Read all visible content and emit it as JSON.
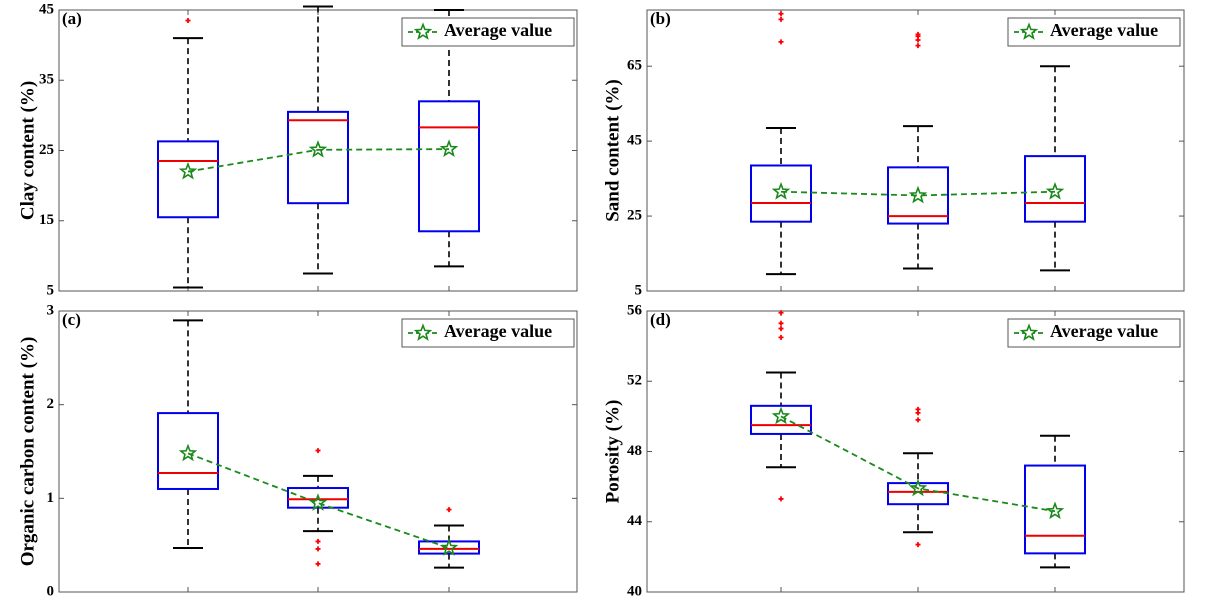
{
  "colors": {
    "box": "#0000ee",
    "median": "#ee0000",
    "whisker": "#000000",
    "outlier": "#ff0000",
    "average": "#1a8a1a",
    "axes": "#555555"
  },
  "chart_data": [
    {
      "type": "box",
      "panel_label": "(a)",
      "ylabel": "Clay content (%)",
      "ylim": [
        5,
        45
      ],
      "yticks": [
        5,
        15,
        25,
        35,
        45
      ],
      "grid": false,
      "legend": {
        "label": "Average value",
        "position": "top-right"
      },
      "groups": [
        {
          "low": 5.5,
          "q1": 15.5,
          "median": 23.5,
          "q3": 26.3,
          "high": 41,
          "mean": 22,
          "outliers": [
            43.5
          ]
        },
        {
          "low": 7.5,
          "q1": 17.5,
          "median": 29.3,
          "q3": 30.5,
          "high": 45.5,
          "mean": 25.1,
          "outliers": []
        },
        {
          "low": 8.5,
          "q1": 13.5,
          "median": 28.3,
          "q3": 32,
          "high": 45,
          "mean": 25.2,
          "outliers": []
        }
      ]
    },
    {
      "type": "box",
      "panel_label": "(b)",
      "ylabel": "Sand content (%)",
      "ylim": [
        5,
        80
      ],
      "yticks": [
        5,
        25,
        45,
        65
      ],
      "grid": false,
      "legend": {
        "label": "Average value",
        "position": "top-right"
      },
      "groups": [
        {
          "low": 9.5,
          "q1": 23.5,
          "median": 28.5,
          "q3": 38.5,
          "high": 48.5,
          "mean": 31.5,
          "outliers": [
            71.5,
            77.5,
            79
          ]
        },
        {
          "low": 11,
          "q1": 23,
          "median": 25,
          "q3": 38,
          "high": 49,
          "mean": 30.5,
          "outliers": [
            70.5,
            72,
            73,
            73.5
          ]
        },
        {
          "low": 10.5,
          "q1": 23.5,
          "median": 28.5,
          "q3": 41,
          "high": 65,
          "mean": 31.5,
          "outliers": []
        }
      ]
    },
    {
      "type": "box",
      "panel_label": "(c)",
      "ylabel": "Organic carbon content (%)",
      "ylim": [
        0,
        3
      ],
      "yticks": [
        0,
        1,
        2,
        3
      ],
      "grid": false,
      "legend": {
        "label": "Average value",
        "position": "top-right"
      },
      "groups": [
        {
          "low": 0.47,
          "q1": 1.1,
          "median": 1.27,
          "q3": 1.91,
          "high": 2.9,
          "mean": 1.48,
          "outliers": []
        },
        {
          "low": 0.65,
          "q1": 0.9,
          "median": 0.99,
          "q3": 1.11,
          "high": 1.24,
          "mean": 0.95,
          "outliers": [
            1.51,
            0.54,
            0.46,
            0.3
          ]
        },
        {
          "low": 0.26,
          "q1": 0.41,
          "median": 0.46,
          "q3": 0.54,
          "high": 0.71,
          "mean": 0.47,
          "outliers": [
            0.88
          ]
        }
      ]
    },
    {
      "type": "box",
      "panel_label": "(d)",
      "ylabel": "Porosity (%)",
      "ylim": [
        40,
        56
      ],
      "yticks": [
        40,
        44,
        48,
        52,
        56
      ],
      "grid": false,
      "legend": {
        "label": "Average value",
        "position": "top-right"
      },
      "groups": [
        {
          "low": 47.1,
          "q1": 49,
          "median": 49.5,
          "q3": 50.6,
          "high": 52.5,
          "mean": 50,
          "outliers": [
            45.3,
            54.5,
            55,
            55.3,
            55.9
          ]
        },
        {
          "low": 43.4,
          "q1": 45,
          "median": 45.7,
          "q3": 46.2,
          "high": 47.9,
          "mean": 45.9,
          "outliers": [
            42.7,
            49.8,
            50.2,
            50.4
          ]
        },
        {
          "low": 41.4,
          "q1": 42.2,
          "median": 43.2,
          "q3": 47.2,
          "high": 48.9,
          "mean": 44.6,
          "outliers": []
        }
      ]
    }
  ]
}
